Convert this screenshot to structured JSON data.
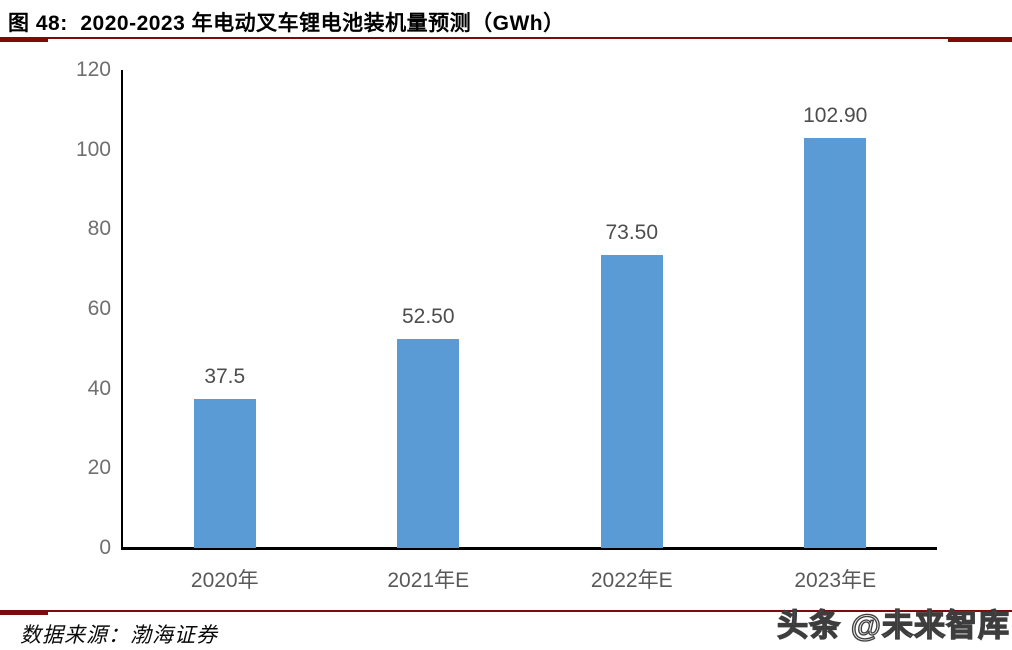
{
  "page": {
    "title": "图 48:  2020-2023 年电动叉车锂电池装机量预测（GWh）",
    "source": "数据来源：渤海证券",
    "watermark": "头条 @未来智库",
    "accent_color": "#7d0b0b"
  },
  "chart_data": {
    "type": "bar",
    "title": "2020-2023 年电动叉车锂电池装机量预测（GWh）",
    "categories": [
      "2020年",
      "2021年E",
      "2022年E",
      "2023年E"
    ],
    "values": [
      37.5,
      52.5,
      73.5,
      102.9
    ],
    "value_labels": [
      "37.5",
      "52.50",
      "73.50",
      "102.90"
    ],
    "xlabel": "",
    "ylabel": "",
    "ylim": [
      0,
      120
    ],
    "yticks": [
      0,
      20,
      40,
      60,
      80,
      100,
      120
    ],
    "grid": false,
    "legend": "none",
    "bar_color": "#5B9BD5",
    "axis_color": "#000000"
  }
}
